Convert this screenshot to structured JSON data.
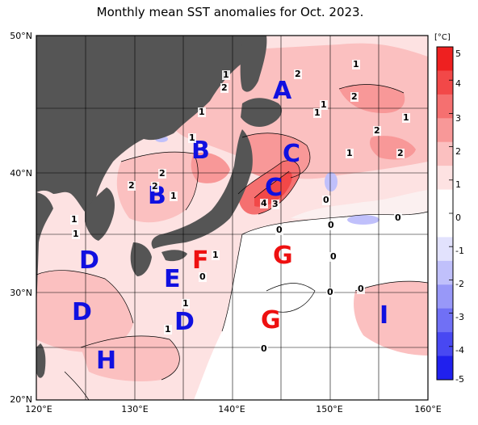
{
  "title": "Monthly mean SST anomalies for Oct. 2023.",
  "y_ticks": [
    "50°N",
    "40°N",
    "30°N",
    "20°N"
  ],
  "x_ticks": [
    "120°E",
    "130°E",
    "140°E",
    "150°E",
    "160°E"
  ],
  "colorbar": {
    "unit": "[°C]",
    "ticks": [
      "5",
      "4",
      "3",
      "2",
      "1",
      "0",
      "-1",
      "-2",
      "-3",
      "-4",
      "-5"
    ],
    "colors_top_to_bottom": [
      "#ee2020",
      "#f24848",
      "#f57070",
      "#f89898",
      "#fbc0c0",
      "#fde2e2",
      "#ffffff",
      "#ffffff",
      "#e2e2fd",
      "#c0c0fb",
      "#9898f8",
      "#7070f5",
      "#4848f2",
      "#2020ee"
    ]
  },
  "regions": [
    {
      "label": "A",
      "color": "#1010e0"
    },
    {
      "label": "B",
      "color": "#1010e0"
    },
    {
      "label": "B",
      "color": "#1010e0"
    },
    {
      "label": "C",
      "color": "#1010e0"
    },
    {
      "label": "C",
      "color": "#1010e0"
    },
    {
      "label": "D",
      "color": "#1010e0"
    },
    {
      "label": "D",
      "color": "#1010e0"
    },
    {
      "label": "D",
      "color": "#1010e0"
    },
    {
      "label": "E",
      "color": "#1010e0"
    },
    {
      "label": "F",
      "color": "#ee1010"
    },
    {
      "label": "G",
      "color": "#ee1010"
    },
    {
      "label": "G",
      "color": "#ee1010"
    },
    {
      "label": "H",
      "color": "#1010e0"
    },
    {
      "label": "I",
      "color": "#1010e0"
    }
  ],
  "contour_labels": [
    "2",
    "1",
    "2",
    "1",
    "1",
    "1",
    "1",
    "2",
    "1",
    "2",
    "2",
    "1",
    "1",
    "2",
    "2",
    "2",
    "1",
    "4",
    "3",
    "0",
    "0",
    "0",
    "0",
    "0",
    "0",
    "1",
    "1",
    "1",
    "0",
    "1",
    "1",
    "0",
    "0"
  ],
  "colors": {
    "land": "#555555",
    "ocean_warm": "#fbc0c0",
    "frame": "#000000"
  }
}
